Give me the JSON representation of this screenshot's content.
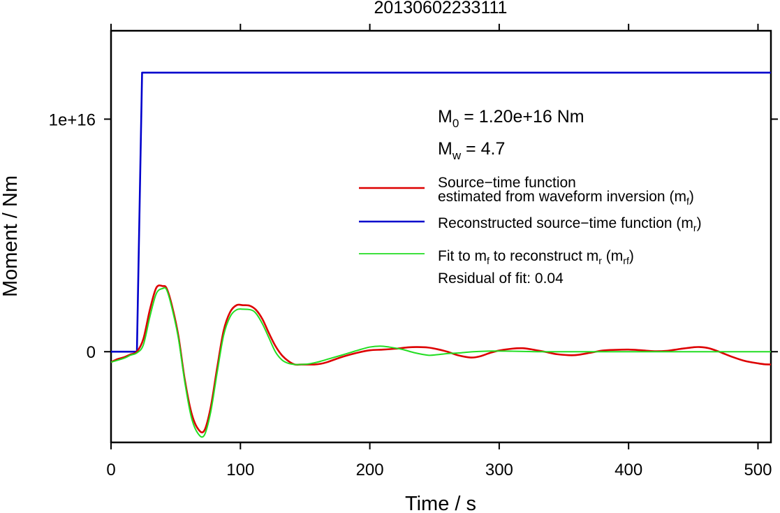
{
  "chart_data": {
    "type": "line",
    "title": "20130602233111",
    "xlabel": "Time / s",
    "ylabel": "Moment / Nm",
    "xlim": [
      0,
      510
    ],
    "ylim": [
      -3900000000000000.0,
      1.38e+16
    ],
    "x_ticks": [
      0,
      100,
      200,
      300,
      400,
      500
    ],
    "x_tick_labels": [
      "0",
      "100",
      "200",
      "300",
      "400",
      "500"
    ],
    "y_ticks": [
      0,
      1e+16
    ],
    "y_tick_labels": [
      "0",
      "1e+16"
    ],
    "grid": false,
    "legend_position": "right",
    "annotations": {
      "m0": {
        "base": "M",
        "sub": "0",
        "rest": " = 1.20e+16 Nm"
      },
      "mw": {
        "base": "M",
        "sub": "w",
        "rest": " = 4.7"
      },
      "residual": "Residual of fit: 0.04"
    },
    "legend": {
      "source_line1": "Source−time function",
      "source_line2_a": "estimated from waveform inversion (m",
      "source_line2_sub": "f",
      "source_line2_b": ")",
      "reconstructed_a": "Reconstructed source−time function (m",
      "reconstructed_sub": "r",
      "reconstructed_b": ")",
      "fit_a": "Fit to m",
      "fit_sub1": "f",
      "fit_b": " to reconstruct m",
      "fit_sub2": "r",
      "fit_c": " (m",
      "fit_sub3": "rf",
      "fit_d": ")"
    },
    "colors": {
      "source": "#dd0000",
      "reconstructed": "#0000cc",
      "fit": "#22dd22"
    },
    "series": [
      {
        "key": "source",
        "x": [
          0,
          5,
          10,
          15,
          20,
          25,
          30,
          35,
          40,
          43,
          47,
          52,
          57,
          62,
          67,
          72,
          77,
          82,
          87,
          92,
          97,
          102,
          107,
          112,
          117,
          122,
          127,
          132,
          137,
          142,
          147,
          152,
          157,
          162,
          167,
          172,
          180,
          190,
          200,
          210,
          220,
          230,
          237,
          245,
          252,
          260,
          268,
          278,
          285,
          293,
          300,
          310,
          318,
          325,
          335,
          345,
          358,
          370,
          380,
          390,
          400,
          410,
          420,
          430,
          440,
          450,
          455,
          462,
          470,
          480,
          490,
          500,
          505,
          510
        ],
        "y": [
          -450000000000000.0,
          -320000000000000.0,
          -240000000000000.0,
          -120000000000000.0,
          0,
          550000000000000.0,
          1800000000000000.0,
          2750000000000000.0,
          2820000000000000.0,
          2720000000000000.0,
          2000000000000000.0,
          700000000000000.0,
          -1200000000000000.0,
          -2600000000000000.0,
          -3300000000000000.0,
          -3400000000000000.0,
          -2400000000000000.0,
          -700000000000000.0,
          900000000000000.0,
          1700000000000000.0,
          2000000000000000.0,
          2000000000000000.0,
          1980000000000000.0,
          1800000000000000.0,
          1400000000000000.0,
          800000000000000.0,
          250000000000000.0,
          -150000000000000.0,
          -400000000000000.0,
          -550000000000000.0,
          -550000000000000.0,
          -550000000000000.0,
          -550000000000000.0,
          -520000000000000.0,
          -450000000000000.0,
          -350000000000000.0,
          -200000000000000.0,
          -50000000000000.0,
          60000000000000.0,
          90000000000000.0,
          130000000000000.0,
          190000000000000.0,
          200000000000000.0,
          180000000000000.0,
          110000000000000.0,
          0,
          -150000000000000.0,
          -250000000000000.0,
          -200000000000000.0,
          -50000000000000.0,
          50000000000000.0,
          130000000000000.0,
          150000000000000.0,
          100000000000000.0,
          0,
          -110000000000000.0,
          -150000000000000.0,
          -50000000000000.0,
          50000000000000.0,
          80000000000000.0,
          90000000000000.0,
          60000000000000.0,
          20000000000000.0,
          40000000000000.0,
          120000000000000.0,
          190000000000000.0,
          200000000000000.0,
          150000000000000.0,
          0,
          -220000000000000.0,
          -400000000000000.0,
          -500000000000000.0,
          -540000000000000.0,
          -550000000000000.0
        ]
      },
      {
        "key": "reconstructed",
        "x": [
          0,
          20,
          24,
          510
        ],
        "y": [
          0,
          0,
          1.2e+16,
          1.2e+16
        ]
      },
      {
        "key": "fit",
        "x": [
          0,
          10,
          15,
          20,
          25,
          30,
          35,
          40,
          43,
          47,
          52,
          57,
          62,
          67,
          72,
          77,
          82,
          87,
          92,
          97,
          102,
          108,
          112,
          117,
          122,
          127,
          132,
          137,
          142,
          147,
          152,
          157,
          162,
          170,
          180,
          190,
          200,
          208,
          215,
          225,
          235,
          245,
          252,
          260,
          270,
          280,
          295,
          310,
          330,
          350,
          380,
          420,
          460,
          510
        ],
        "y": [
          -450000000000000.0,
          -280000000000000.0,
          -150000000000000.0,
          -50000000000000.0,
          300000000000000.0,
          1500000000000000.0,
          2500000000000000.0,
          2720000000000000.0,
          2660000000000000.0,
          1900000000000000.0,
          600000000000000.0,
          -1300000000000000.0,
          -2800000000000000.0,
          -3500000000000000.0,
          -3600000000000000.0,
          -2600000000000000.0,
          -900000000000000.0,
          700000000000000.0,
          1500000000000000.0,
          1800000000000000.0,
          1830000000000000.0,
          1800000000000000.0,
          1650000000000000.0,
          1200000000000000.0,
          600000000000000.0,
          0,
          -350000000000000.0,
          -500000000000000.0,
          -550000000000000.0,
          -550000000000000.0,
          -530000000000000.0,
          -480000000000000.0,
          -410000000000000.0,
          -280000000000000.0,
          -120000000000000.0,
          50000000000000.0,
          200000000000000.0,
          240000000000000.0,
          200000000000000.0,
          100000000000000.0,
          -50000000000000.0,
          -150000000000000.0,
          -130000000000000.0,
          -80000000000000.0,
          -50000000000000.0,
          0,
          30000000000000.0,
          20000000000000.0,
          0,
          0,
          0,
          0,
          0,
          0
        ]
      }
    ]
  }
}
